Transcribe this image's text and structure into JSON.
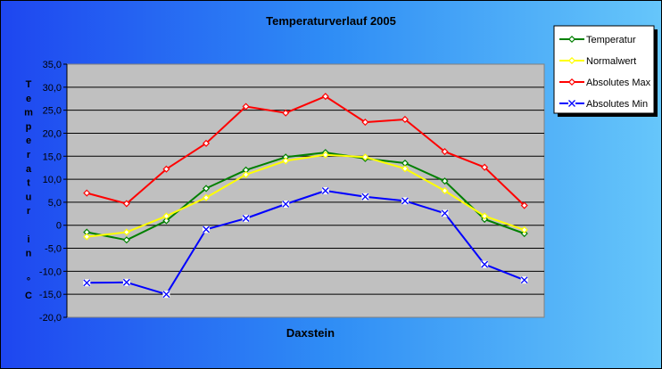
{
  "chart_data": {
    "type": "line",
    "title": "Temperaturverlauf  2005",
    "xlabel": "Daxstein",
    "ylabel_chars": [
      "T",
      "e",
      "m",
      "p",
      "e",
      "r",
      "a",
      "t",
      "u",
      "r",
      "",
      "i",
      "n",
      "",
      "°",
      "C"
    ],
    "ylim": [
      -20,
      35
    ],
    "ytick_step": 5,
    "ytick_labels": [
      "35,0",
      "30,0",
      "25,0",
      "20,0",
      "15,0",
      "10,0",
      "5,0",
      "0",
      "-5,0",
      "-10,0",
      "-15,0",
      "-20,0"
    ],
    "grid": "horizontal",
    "legend_position": "top-right",
    "n_points": 12,
    "series": [
      {
        "name": "Temperatur",
        "color": "#008000",
        "marker": "diamond",
        "values": [
          -1.5,
          -3.2,
          1.0,
          8.0,
          12.0,
          14.8,
          15.8,
          14.5,
          13.5,
          9.6,
          1.3,
          -1.8
        ]
      },
      {
        "name": "Normalwert",
        "color": "#FFFF00",
        "marker": "diamond",
        "values": [
          -2.5,
          -1.5,
          2.0,
          6.0,
          11.0,
          14.0,
          15.3,
          14.8,
          12.3,
          7.5,
          2.0,
          -1.0
        ]
      },
      {
        "name": "Absolutes Max",
        "color": "#FF0000",
        "marker": "diamond",
        "values": [
          7.0,
          4.7,
          12.2,
          17.8,
          25.8,
          24.4,
          28.0,
          22.4,
          23.0,
          16.0,
          12.6,
          4.3
        ]
      },
      {
        "name": "Absolutes Min",
        "color": "#0000FF",
        "marker": "x",
        "values": [
          -12.5,
          -12.4,
          -15.0,
          -0.9,
          1.5,
          4.6,
          7.5,
          6.2,
          5.3,
          2.6,
          -8.5,
          -11.9
        ]
      }
    ]
  }
}
